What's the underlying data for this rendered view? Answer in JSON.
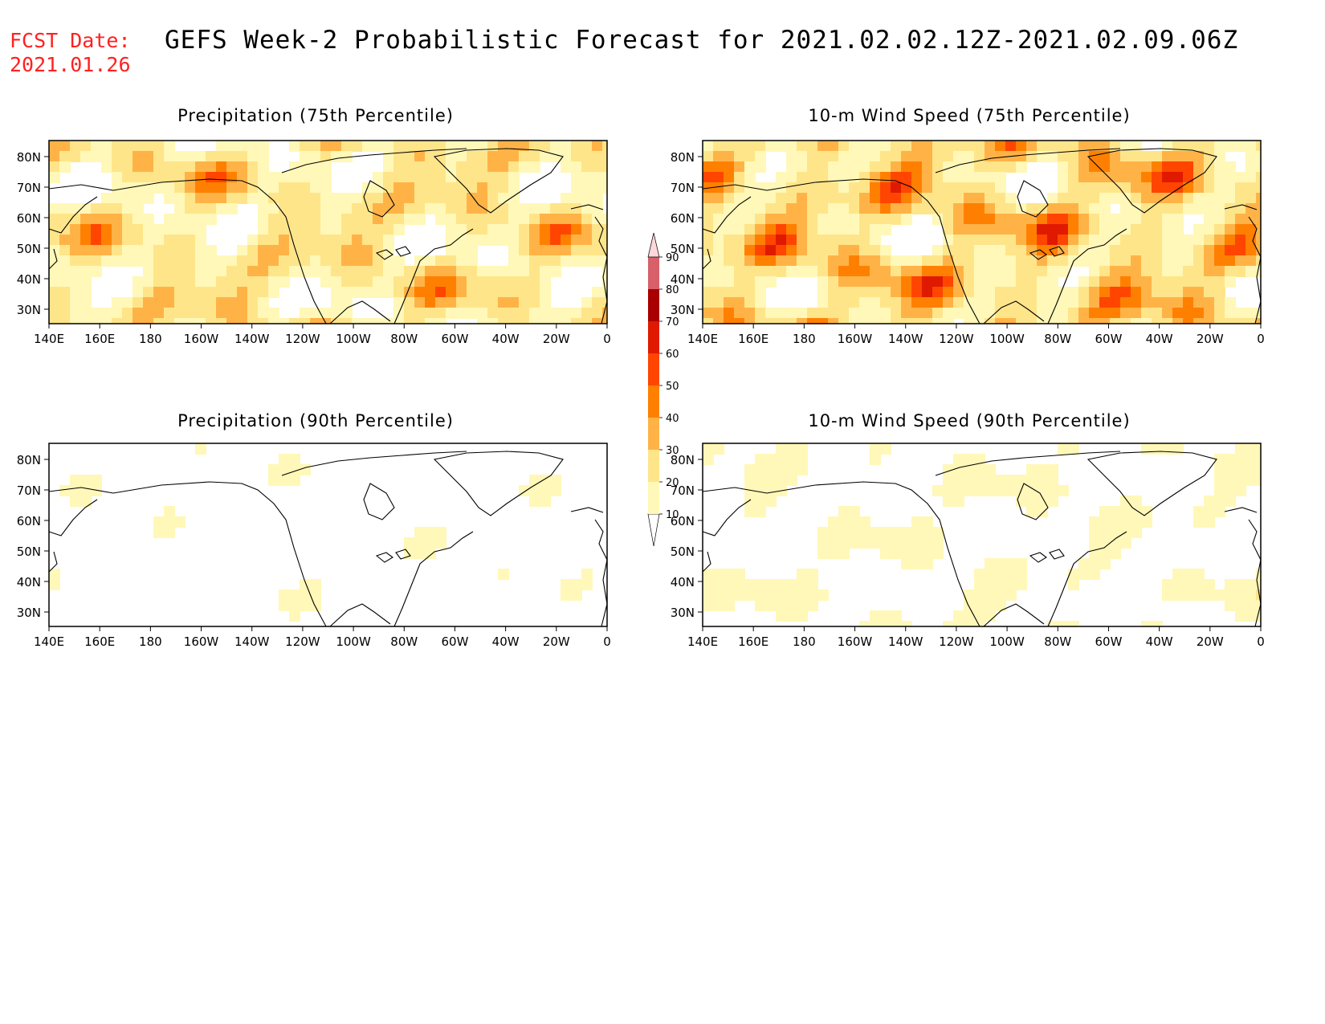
{
  "header": {
    "fcst_label": "FCST Date:",
    "fcst_date": "2021.01.26",
    "title": "GEFS Week-2 Probabilistic Forecast for 2021.02.02.12Z-2021.02.09.06Z"
  },
  "panels": [
    {
      "id": "p75",
      "title": "Precipitation (75th Percentile)",
      "intensity": 0.85
    },
    {
      "id": "w75",
      "title": "10-m Wind Speed (75th Percentile)",
      "intensity": 1.0
    },
    {
      "id": "p90",
      "title": "Precipitation (90th Percentile)",
      "intensity": 0.35
    },
    {
      "id": "w90",
      "title": "10-m Wind Speed (90th Percentile)",
      "intensity": 0.45
    }
  ],
  "axes": {
    "lat_labels": [
      "80N",
      "70N",
      "60N",
      "50N",
      "40N",
      "30N"
    ],
    "lon_labels": [
      "140E",
      "160E",
      "180",
      "160W",
      "140W",
      "120W",
      "100W",
      "80W",
      "60W",
      "40W",
      "20W",
      "0"
    ]
  },
  "colorbar": {
    "levels": [
      "10",
      "20",
      "30",
      "40",
      "50",
      "60",
      "70",
      "80",
      "90"
    ],
    "colors": [
      "#fff8b8",
      "#ffe58a",
      "#ffb347",
      "#ff8000",
      "#ff4500",
      "#e01a00",
      "#a80000",
      "#d8606a",
      "#f4a0a8",
      "#fcd8dc"
    ]
  }
}
